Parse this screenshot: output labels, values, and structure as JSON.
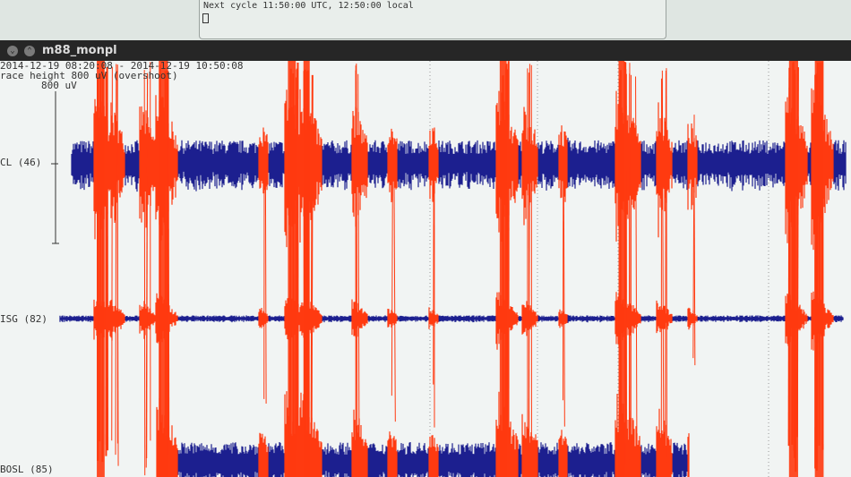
{
  "terminal": {
    "line": "Next cycle 11:50:00 UTC, 12:50:00 local"
  },
  "window": {
    "title": "m88_monpl"
  },
  "plot": {
    "time_range": "2014-12-19 08:20:08 - 2014-12-19 10:50:08",
    "trace_height": "race height 800 uV (overshoot)",
    "scale_label": "800 uV",
    "start": "08:20:08",
    "end": "10:50:08"
  },
  "colors": {
    "trace": "#1c1f8f",
    "trigger": "#ff3a10",
    "background": "#f1f4f3"
  },
  "stations": [
    {
      "label": "CL (46)",
      "gain": 1.0
    },
    {
      "label": "ISG (82)",
      "gain": 0.15
    },
    {
      "label": "BOSL (85)",
      "gain": 0.6
    }
  ],
  "events": [
    {
      "time": "08:25",
      "strength": 3
    },
    {
      "time": "08:28",
      "strength": 2
    },
    {
      "time": "08:34",
      "strength": 2
    },
    {
      "time": "08:37",
      "strength": 3
    },
    {
      "time": "08:57",
      "strength": 1
    },
    {
      "time": "09:02",
      "strength": 3
    },
    {
      "time": "09:05",
      "strength": 3
    },
    {
      "time": "09:15",
      "strength": 2
    },
    {
      "time": "09:22",
      "strength": 1
    },
    {
      "time": "09:30",
      "strength": 1
    },
    {
      "time": "09:43",
      "strength": 3
    },
    {
      "time": "09:48",
      "strength": 2
    },
    {
      "time": "09:55",
      "strength": 1
    },
    {
      "time": "10:06",
      "strength": 3
    },
    {
      "time": "10:08",
      "strength": 2
    },
    {
      "time": "10:14",
      "strength": 2
    },
    {
      "time": "10:20",
      "strength": 1
    },
    {
      "time": "10:39",
      "strength": 3
    },
    {
      "time": "10:44",
      "strength": 3
    }
  ]
}
